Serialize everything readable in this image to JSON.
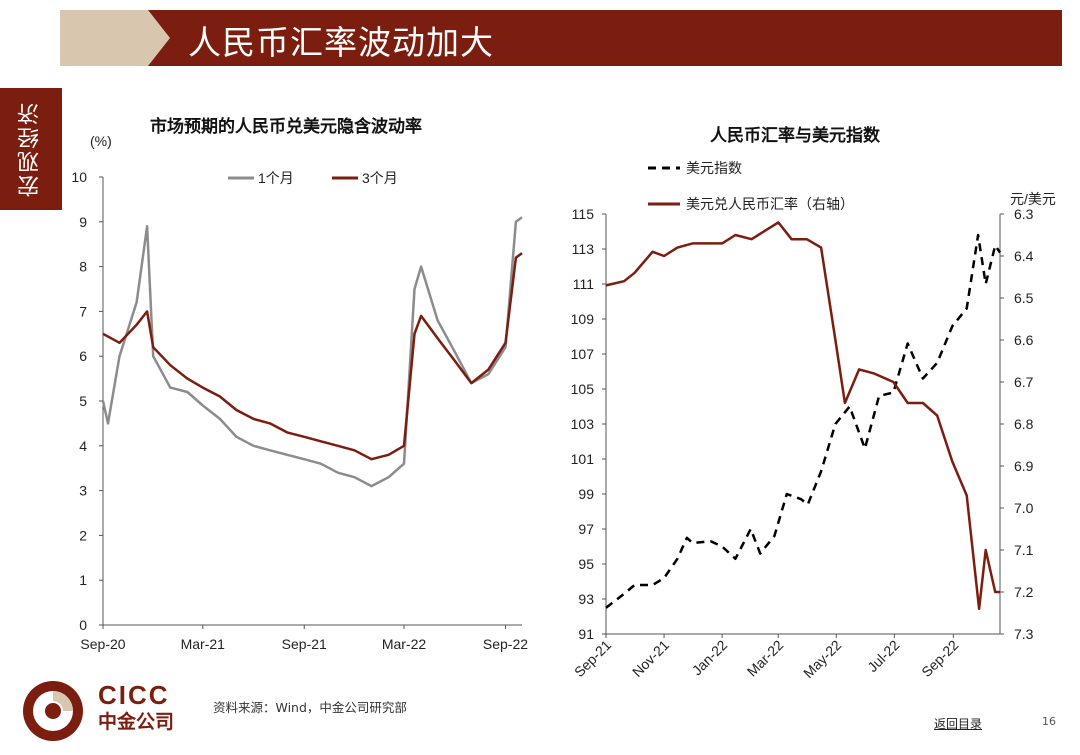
{
  "header": {
    "title": "人民币汇率波动加大"
  },
  "sidebar": {
    "label": "宏观经济"
  },
  "colors": {
    "brand": "#7b1d0f",
    "accent_light": "#d8c7ae",
    "series_gray": "#8c8c8c",
    "series_red": "#7b1d0f"
  },
  "chart_data": [
    {
      "type": "line",
      "title": "市场预期的人民币兑美元隐含波动率",
      "ylabel": "(%)",
      "ylim": [
        0,
        10
      ],
      "yticks": [
        0,
        1,
        2,
        3,
        4,
        5,
        6,
        7,
        8,
        9,
        10
      ],
      "xticks": [
        {
          "label": "Sep-20",
          "x": "2020-09"
        },
        {
          "label": "Mar-21",
          "x": "2021-03"
        },
        {
          "label": "Sep-21",
          "x": "2021-09"
        },
        {
          "label": "Mar-22",
          "x": "2022-03"
        },
        {
          "label": "Sep-22",
          "x": "2022-09"
        }
      ],
      "x_range": [
        "2020-09",
        "2022-10"
      ],
      "legend": "top",
      "grid": false,
      "series": [
        {
          "name": "1个月",
          "color": "#8c8c8c",
          "style": "solid",
          "points": [
            [
              "2020-09",
              5.0
            ],
            [
              "2020-09-10",
              4.5
            ],
            [
              "2020-10",
              6.0
            ],
            [
              "2020-11",
              7.2
            ],
            [
              "2020-11-20",
              8.9
            ],
            [
              "2020-12",
              6.0
            ],
            [
              "2021-01",
              5.3
            ],
            [
              "2021-02",
              5.2
            ],
            [
              "2021-03",
              4.9
            ],
            [
              "2021-04",
              4.6
            ],
            [
              "2021-05",
              4.2
            ],
            [
              "2021-06",
              4.0
            ],
            [
              "2021-07",
              3.9
            ],
            [
              "2021-08",
              3.8
            ],
            [
              "2021-09",
              3.7
            ],
            [
              "2021-10",
              3.6
            ],
            [
              "2021-11",
              3.4
            ],
            [
              "2021-12",
              3.3
            ],
            [
              "2022-01",
              3.1
            ],
            [
              "2022-02",
              3.3
            ],
            [
              "2022-03",
              3.6
            ],
            [
              "2022-03-20",
              7.5
            ],
            [
              "2022-04",
              8.0
            ],
            [
              "2022-05",
              6.8
            ],
            [
              "2022-06",
              6.1
            ],
            [
              "2022-07",
              5.4
            ],
            [
              "2022-08",
              5.6
            ],
            [
              "2022-09",
              6.2
            ],
            [
              "2022-09-20",
              9.0
            ],
            [
              "2022-10",
              9.1
            ]
          ]
        },
        {
          "name": "3个月",
          "color": "#7b1d0f",
          "style": "solid",
          "points": [
            [
              "2020-09",
              6.5
            ],
            [
              "2020-10",
              6.3
            ],
            [
              "2020-11",
              6.7
            ],
            [
              "2020-11-20",
              7.0
            ],
            [
              "2020-12",
              6.2
            ],
            [
              "2021-01",
              5.8
            ],
            [
              "2021-02",
              5.5
            ],
            [
              "2021-03",
              5.3
            ],
            [
              "2021-04",
              5.1
            ],
            [
              "2021-05",
              4.8
            ],
            [
              "2021-06",
              4.6
            ],
            [
              "2021-07",
              4.5
            ],
            [
              "2021-08",
              4.3
            ],
            [
              "2021-09",
              4.2
            ],
            [
              "2021-10",
              4.1
            ],
            [
              "2021-11",
              4.0
            ],
            [
              "2021-12",
              3.9
            ],
            [
              "2022-01",
              3.7
            ],
            [
              "2022-02",
              3.8
            ],
            [
              "2022-03",
              4.0
            ],
            [
              "2022-03-20",
              6.5
            ],
            [
              "2022-04",
              6.9
            ],
            [
              "2022-05",
              6.4
            ],
            [
              "2022-06",
              5.9
            ],
            [
              "2022-07",
              5.4
            ],
            [
              "2022-08",
              5.7
            ],
            [
              "2022-09",
              6.3
            ],
            [
              "2022-09-20",
              8.2
            ],
            [
              "2022-10",
              8.3
            ]
          ]
        }
      ]
    },
    {
      "type": "line",
      "title": "人民币汇率与美元指数",
      "y2label": "元/美元",
      "ylim": [
        91,
        115
      ],
      "yticks": [
        91,
        93,
        95,
        97,
        99,
        101,
        103,
        105,
        107,
        109,
        111,
        113,
        115
      ],
      "y2lim": [
        6.3,
        7.3
      ],
      "y2_inverted": true,
      "y2ticks": [
        "6.3",
        "6.4",
        "6.5",
        "6.6",
        "6.7",
        "6.8",
        "6.9",
        "7.0",
        "7.1",
        "7.2",
        "7.3"
      ],
      "xticks": [
        {
          "label": "Sep-21",
          "x": "2021-09"
        },
        {
          "label": "Nov-21",
          "x": "2021-11"
        },
        {
          "label": "Jan-22",
          "x": "2022-01"
        },
        {
          "label": "Mar-22",
          "x": "2022-03"
        },
        {
          "label": "May-22",
          "x": "2022-05"
        },
        {
          "label": "Jul-22",
          "x": "2022-07"
        },
        {
          "label": "Sep-22",
          "x": "2022-09"
        }
      ],
      "x_range": [
        "2021-09",
        "2022-10-20"
      ],
      "legend": "top-left",
      "grid": false,
      "series": [
        {
          "name": "美元指数",
          "color": "#000000",
          "style": "dashed",
          "axis": "left",
          "points": [
            [
              "2021-09",
              92.5
            ],
            [
              "2021-09-20",
              93.3
            ],
            [
              "2021-10",
              93.8
            ],
            [
              "2021-10-20",
              93.8
            ],
            [
              "2021-11",
              94.2
            ],
            [
              "2021-11-15",
              95.3
            ],
            [
              "2021-11-25",
              96.5
            ],
            [
              "2021-12",
              96.2
            ],
            [
              "2021-12-20",
              96.3
            ],
            [
              "2022-01",
              96.0
            ],
            [
              "2022-01-15",
              95.3
            ],
            [
              "2022-01-31",
              97.0
            ],
            [
              "2022-02-10",
              95.6
            ],
            [
              "2022-02-25",
              96.6
            ],
            [
              "2022-03-10",
              99.0
            ],
            [
              "2022-03-25",
              98.7
            ],
            [
              "2022-04",
              98.4
            ],
            [
              "2022-04-15",
              100.3
            ],
            [
              "2022-04-30",
              103.0
            ],
            [
              "2022-05-15",
              104.0
            ],
            [
              "2022-05-31",
              101.6
            ],
            [
              "2022-06-15",
              104.6
            ],
            [
              "2022-06-30",
              104.8
            ],
            [
              "2022-07-15",
              107.6
            ],
            [
              "2022-07-31",
              105.6
            ],
            [
              "2022-08-15",
              106.5
            ],
            [
              "2022-08-31",
              108.6
            ],
            [
              "2022-09-15",
              109.6
            ],
            [
              "2022-09-27",
              113.8
            ],
            [
              "2022-10-05",
              111.0
            ],
            [
              "2022-10-15",
              113.2
            ],
            [
              "2022-10-20",
              112.8
            ]
          ]
        },
        {
          "name": "美元兑人民币汇率（右轴）",
          "color": "#7b1d0f",
          "style": "solid",
          "axis": "right",
          "points": [
            [
              "2021-09",
              6.47
            ],
            [
              "2021-09-20",
              6.46
            ],
            [
              "2021-10",
              6.44
            ],
            [
              "2021-10-20",
              6.39
            ],
            [
              "2021-11",
              6.4
            ],
            [
              "2021-11-15",
              6.38
            ],
            [
              "2021-12",
              6.37
            ],
            [
              "2021-12-20",
              6.37
            ],
            [
              "2022-01",
              6.37
            ],
            [
              "2022-01-15",
              6.35
            ],
            [
              "2022-02",
              6.36
            ],
            [
              "2022-02-15",
              6.34
            ],
            [
              "2022-03",
              6.32
            ],
            [
              "2022-03-15",
              6.36
            ],
            [
              "2022-03-31",
              6.36
            ],
            [
              "2022-04-15",
              6.38
            ],
            [
              "2022-04-30",
              6.6
            ],
            [
              "2022-05-10",
              6.75
            ],
            [
              "2022-05-25",
              6.67
            ],
            [
              "2022-06-10",
              6.68
            ],
            [
              "2022-06-30",
              6.7
            ],
            [
              "2022-07-15",
              6.75
            ],
            [
              "2022-07-31",
              6.75
            ],
            [
              "2022-08-15",
              6.78
            ],
            [
              "2022-08-31",
              6.89
            ],
            [
              "2022-09-15",
              6.97
            ],
            [
              "2022-09-28",
              7.24
            ],
            [
              "2022-10-05",
              7.1
            ],
            [
              "2022-10-15",
              7.2
            ],
            [
              "2022-10-20",
              7.2
            ]
          ]
        }
      ]
    }
  ],
  "footer": {
    "source": "资料来源：Wind，中金公司研究部",
    "link": "返回目录",
    "page": "16"
  },
  "logo": {
    "line1": "CICC",
    "line2": "中金公司"
  }
}
